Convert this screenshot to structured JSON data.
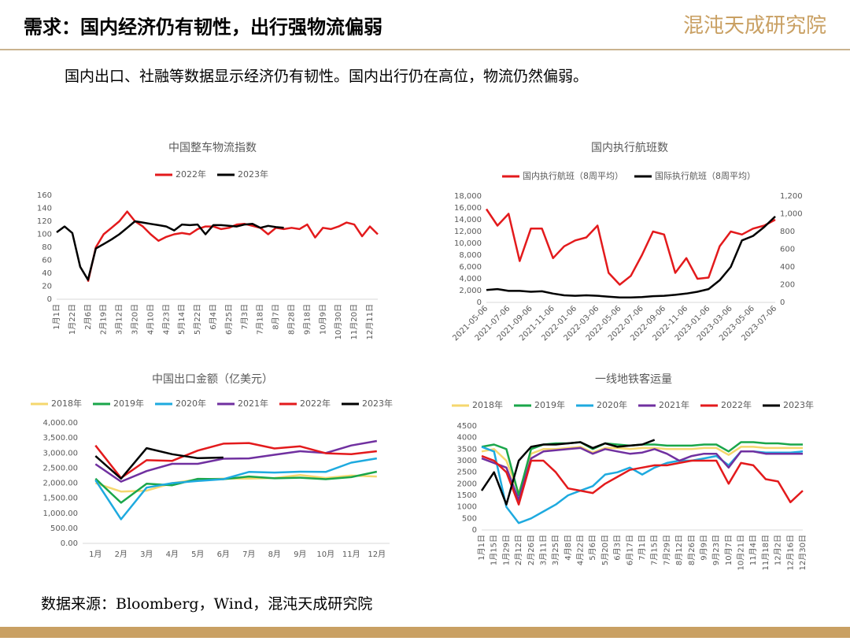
{
  "header": {
    "title": "需求：国内经济仍有韧性，出行强物流偏弱",
    "logo": "混沌天成研究院",
    "subtitle": "国内出口、社融等数据显示经济仍有韧性。国内出行仍在高位，物流仍然偏弱。",
    "source": "数据来源：Bloomberg，Wind，混沌天成研究院"
  },
  "chart_data": [
    {
      "type": "line",
      "title": "中国整车物流指数",
      "categories": [
        "1月1日",
        null,
        "1月22日",
        null,
        "2月6日",
        null,
        "2月19日",
        null,
        "3月12日",
        null,
        "3月20日",
        null,
        "4月10日",
        null,
        "4月23日",
        null,
        "5月14日",
        null,
        "5月22日",
        null,
        "6月4日",
        null,
        "6月25日",
        null,
        "7月3日",
        null,
        "7月18日",
        null,
        "8月7日",
        null,
        "8月28日",
        null,
        "9月18日",
        null,
        "10月9日",
        null,
        "10月30日",
        null,
        "11月20日",
        null,
        "12月11日",
        null
      ],
      "series": [
        {
          "name": "2022年",
          "color": "#e31a1c",
          "values": [
            null,
            null,
            null,
            null,
            27,
            80,
            100,
            110,
            120,
            135,
            120,
            112,
            100,
            90,
            96,
            100,
            102,
            100,
            108,
            112,
            112,
            108,
            110,
            115,
            116,
            113,
            110,
            100,
            110,
            108,
            110,
            108,
            115,
            95,
            110,
            108,
            112,
            118,
            115,
            97,
            112,
            100
          ]
        },
        {
          "name": "2023年",
          "color": "#000000",
          "values": [
            103,
            112,
            102,
            50,
            30,
            78,
            85,
            92,
            100,
            110,
            120,
            118,
            116,
            114,
            112,
            106,
            115,
            114,
            115,
            100,
            114,
            114,
            113,
            112,
            115,
            116,
            110,
            113,
            111,
            110,
            null,
            null,
            null,
            null,
            null,
            null,
            null,
            null,
            null,
            null,
            null,
            null
          ]
        }
      ],
      "ylim": [
        0,
        160
      ],
      "yticks": [
        0,
        20,
        40,
        60,
        80,
        100,
        120,
        140,
        160
      ],
      "grid": false
    },
    {
      "type": "line",
      "title": "国内执行航班数",
      "categories": [
        "2021-05-06",
        null,
        "2021-07-06",
        null,
        "2021-09-06",
        null,
        "2021-11-06",
        null,
        "2022-01-06",
        null,
        "2022-03-06",
        null,
        "2022-05-06",
        null,
        "2022-07-06",
        null,
        "2022-09-06",
        null,
        "2022-11-06",
        null,
        "2023-01-06",
        null,
        "2023-03-06",
        null,
        "2023-05-06",
        null,
        "2023-07-06"
      ],
      "series": [
        {
          "name": "国内执行航班（8周平均）",
          "color": "#e31a1c",
          "values": [
            15800,
            13000,
            15000,
            7000,
            12500,
            12500,
            7500,
            9500,
            10500,
            11000,
            13000,
            5000,
            3000,
            4500,
            8000,
            12000,
            11500,
            5000,
            7500,
            4000,
            4200,
            9500,
            12000,
            11500,
            12500,
            13000,
            14000
          ]
        },
        {
          "name": "国际执行航班（8周平均）",
          "color": "#000000",
          "axis": "y2",
          "values": [
            140,
            150,
            130,
            130,
            120,
            125,
            100,
            80,
            75,
            80,
            75,
            65,
            55,
            55,
            60,
            70,
            75,
            85,
            100,
            120,
            150,
            250,
            400,
            700,
            750,
            850,
            970
          ]
        }
      ],
      "ylim": [
        0,
        18000
      ],
      "yticks": [
        0,
        {
          "value": 2000,
          "label": "2,000"
        },
        {
          "value": 4000,
          "label": "4,000"
        },
        {
          "value": 6000,
          "label": "6,000"
        },
        {
          "value": 8000,
          "label": "8,000"
        },
        {
          "value": 10000,
          "label": "10,000"
        },
        {
          "value": 12000,
          "label": "12,000"
        },
        {
          "value": 14000,
          "label": "14,000"
        },
        {
          "value": 16000,
          "label": "16,000"
        },
        {
          "value": 18000,
          "label": "18,000"
        }
      ],
      "y2lim": [
        0,
        1200
      ],
      "y2ticks": [
        0,
        200,
        400,
        600,
        800,
        {
          "value": 1000,
          "label": "1,000"
        },
        {
          "value": 1200,
          "label": "1,200"
        }
      ],
      "grid": false
    },
    {
      "type": "line",
      "title": "中国出口金额（亿美元）",
      "categories": [
        "1月",
        "2月",
        "3月",
        "4月",
        "5月",
        "6月",
        "7月",
        "8月",
        "9月",
        "10月",
        "11月",
        "12月"
      ],
      "series": [
        {
          "name": "2018年",
          "color": "#f5d76e",
          "values": [
            2000,
            1720,
            1750,
            2000,
            2120,
            2150,
            2150,
            2170,
            2270,
            2170,
            2250,
            2220
          ]
        },
        {
          "name": "2019年",
          "color": "#1aa64a",
          "values": [
            2150,
            1350,
            1980,
            1930,
            2140,
            2130,
            2220,
            2160,
            2180,
            2130,
            2200,
            2380
          ]
        },
        {
          "name": "2020年",
          "color": "#1eaadf",
          "values": [
            2100,
            800,
            1850,
            2000,
            2070,
            2130,
            2370,
            2350,
            2380,
            2370,
            2680,
            2820
          ]
        },
        {
          "name": "2021年",
          "color": "#7030a0",
          "values": [
            2630,
            2050,
            2400,
            2640,
            2640,
            2810,
            2820,
            2940,
            3060,
            3000,
            3250,
            3400
          ]
        },
        {
          "name": "2022年",
          "color": "#e31a1c",
          "values": [
            3250,
            2170,
            2760,
            2740,
            3080,
            3310,
            3330,
            3150,
            3220,
            2990,
            2960,
            3060
          ]
        },
        {
          "name": "2023年",
          "color": "#000000",
          "values": [
            2900,
            2150,
            3160,
            2960,
            2830,
            2850,
            null,
            null,
            null,
            null,
            null,
            null
          ]
        }
      ],
      "ylim": [
        0,
        4000
      ],
      "yticks": [
        {
          "value": 0,
          "label": "0.00"
        },
        {
          "value": 500,
          "label": "500.00"
        },
        {
          "value": 1000,
          "label": "1,000.00"
        },
        {
          "value": 1500,
          "label": "1,500.00"
        },
        {
          "value": 2000,
          "label": "2,000.00"
        },
        {
          "value": 2500,
          "label": "2,500.00"
        },
        {
          "value": 3000,
          "label": "3,000.00"
        },
        {
          "value": 3500,
          "label": "3,500.00"
        },
        {
          "value": 4000,
          "label": "4,000.00"
        }
      ],
      "grid": false
    },
    {
      "type": "line",
      "title": "一线地铁客运量",
      "categories": [
        "1月1日",
        "1月15日",
        "1月29日",
        "2月12日",
        "2月26日",
        "3月11日",
        "3月25日",
        "4月8日",
        "4月22日",
        "5月6日",
        "5月20日",
        "6月3日",
        "6月17日",
        "7月1日",
        "7月15日",
        "7月29日",
        "8月12日",
        "8月26日",
        "9月9日",
        "9月23日",
        "10月7日",
        "10月21日",
        "11月4日",
        "11月18日",
        "12月2日",
        "12月16日",
        "12月30日"
      ],
      "series": [
        {
          "name": "2018年",
          "color": "#f5d76e",
          "values": [
            3400,
            3500,
            3000,
            1600,
            3300,
            3500,
            3500,
            3550,
            3600,
            3350,
            3550,
            3550,
            3500,
            3550,
            3550,
            3500,
            3500,
            3500,
            3550,
            3550,
            3250,
            3600,
            3600,
            3550,
            3550,
            3550,
            3550
          ]
        },
        {
          "name": "2019年",
          "color": "#1aa64a",
          "values": [
            3600,
            3700,
            3500,
            1500,
            3500,
            3700,
            3750,
            3750,
            3800,
            3500,
            3750,
            3700,
            3650,
            3700,
            3700,
            3650,
            3650,
            3650,
            3700,
            3700,
            3400,
            3800,
            3800,
            3750,
            3750,
            3700,
            3700
          ]
        },
        {
          "name": "2020年",
          "color": "#1eaadf",
          "values": [
            3600,
            3400,
            1000,
            300,
            500,
            800,
            1100,
            1500,
            1700,
            1900,
            2400,
            2500,
            2700,
            2400,
            2700,
            2900,
            3000,
            3000,
            3100,
            3200,
            2800,
            3400,
            3400,
            3350,
            3350,
            3350,
            3400
          ]
        },
        {
          "name": "2021年",
          "color": "#7030a0",
          "values": [
            3100,
            2900,
            2700,
            1300,
            3100,
            3400,
            3450,
            3500,
            3550,
            3300,
            3500,
            3400,
            3300,
            3350,
            3500,
            3300,
            3000,
            3200,
            3300,
            3300,
            2700,
            3400,
            3400,
            3300,
            3300,
            3300,
            3300
          ]
        },
        {
          "name": "2022年",
          "color": "#e31a1c",
          "values": [
            3200,
            3000,
            2500,
            1100,
            3000,
            3000,
            2500,
            1800,
            1700,
            1600,
            2000,
            2300,
            2600,
            2700,
            2800,
            2800,
            2900,
            3000,
            3000,
            3000,
            2000,
            2900,
            2800,
            2200,
            2100,
            1200,
            1700
          ]
        },
        {
          "name": "2023年",
          "color": "#000000",
          "values": [
            1700,
            2500,
            1100,
            3000,
            3600,
            3700,
            3700,
            3750,
            3800,
            3550,
            3750,
            3600,
            3650,
            3700,
            3900,
            null,
            null,
            null,
            null,
            null,
            null,
            null,
            null,
            null,
            null,
            null,
            null
          ]
        }
      ],
      "ylim": [
        0,
        4500
      ],
      "yticks": [
        0,
        500,
        1000,
        1500,
        2000,
        2500,
        3000,
        3500,
        4000,
        4500
      ],
      "grid": false
    }
  ]
}
